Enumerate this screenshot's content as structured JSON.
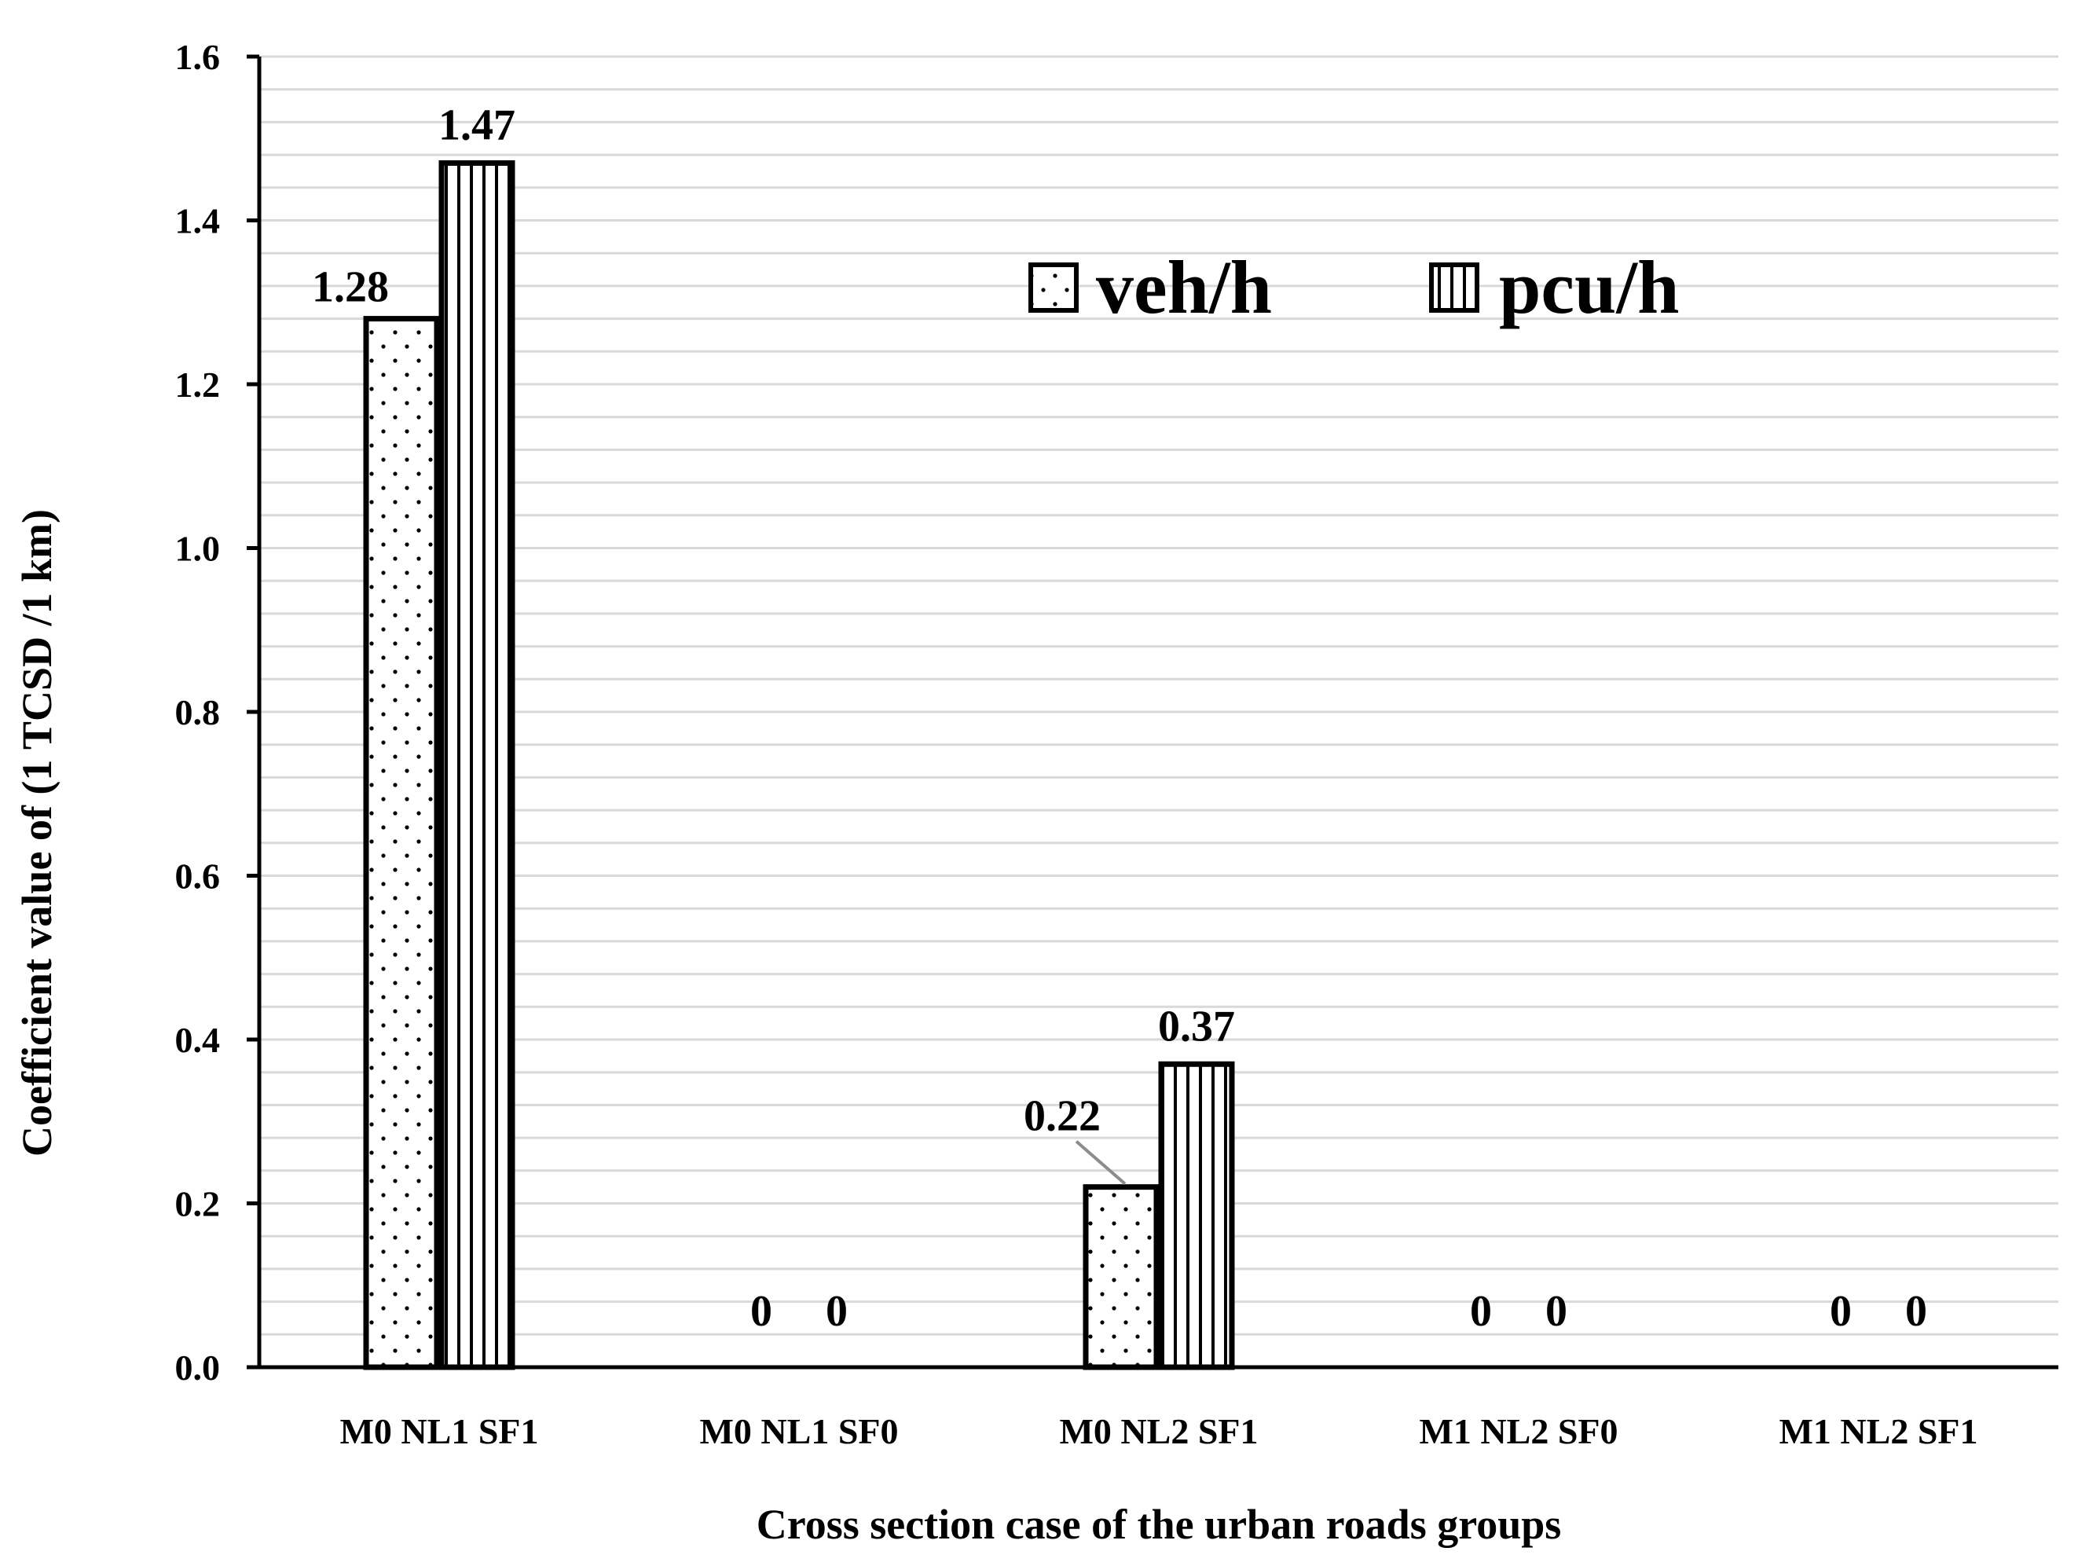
{
  "chart_data": {
    "type": "bar",
    "title": "",
    "xlabel": "Cross section case of the urban roads groups",
    "ylabel": "Coefficient value of  (1 TCSD /1 km)",
    "ylim": [
      0,
      1.6
    ],
    "ytick_step": 0.2,
    "minor_grid_step": 0.04,
    "ytick_labels": [
      "0.0",
      "0.2",
      "0.4",
      "0.6",
      "0.8",
      "1.0",
      "1.2",
      "1.4",
      "1.6"
    ],
    "grid": true,
    "legend_position": "top-right",
    "categories": [
      "M0 NL1 SF1",
      "M0 NL1 SF0",
      "M0 NL2 SF1",
      "M1 NL2 SF0",
      "M1 NL2 SF1"
    ],
    "series": [
      {
        "name": "veh/h",
        "pattern": "dots",
        "values": [
          1.28,
          0,
          0.22,
          0,
          0
        ],
        "labels": [
          "1.28",
          "0",
          "0.22",
          "0",
          "0"
        ]
      },
      {
        "name": "pcu/h",
        "pattern": "vertical-lines",
        "values": [
          1.47,
          0,
          0.37,
          0,
          0
        ],
        "labels": [
          "1.47",
          "0",
          "0.37",
          "0",
          "0"
        ]
      }
    ],
    "colors": {
      "bar_stroke": "#000000",
      "bar_fill": "#ffffff",
      "grid": "#d9d9d9",
      "axis": "#000000",
      "leader": "#8c8c8c"
    }
  }
}
